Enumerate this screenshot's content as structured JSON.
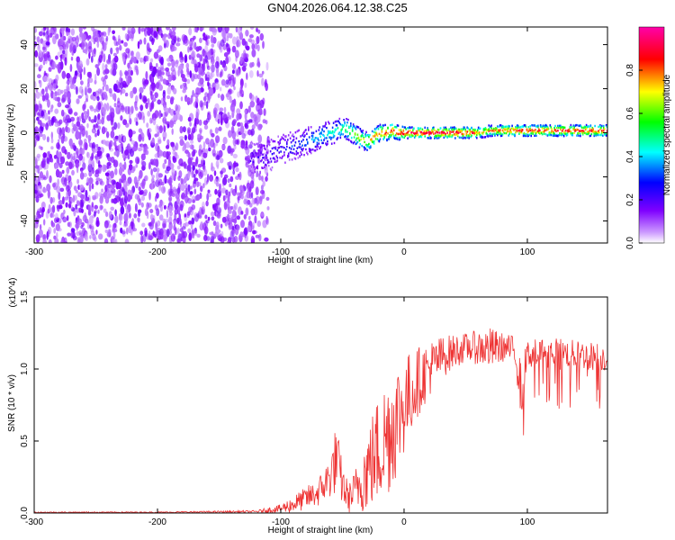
{
  "title": "GN04.2026.064.12.38.C25",
  "chart_data": [
    {
      "type": "heatmap",
      "xlabel": "Height of straight line (km)",
      "ylabel": "Frequency (Hz)",
      "xlim": [
        -300,
        165
      ],
      "ylim": [
        -50,
        48
      ],
      "xticks": [
        -300,
        -200,
        -100,
        0,
        100
      ],
      "yticks": [
        -40,
        -20,
        0,
        20,
        40
      ],
      "grid": false,
      "colorbar": {
        "label": "Normalized spectral amplitude",
        "range": [
          0,
          1
        ],
        "ticks": [
          "0.0",
          "0.2",
          "0.4",
          "0.6",
          "0.8"
        ],
        "colors": [
          "#ffffff",
          "#cc99ff",
          "#7f00ff",
          "#0000ff",
          "#00ffff",
          "#00ff00",
          "#ffff00",
          "#ff0000",
          "#ff00aa"
        ]
      },
      "ridge": {
        "x": [
          -120,
          -110,
          -100,
          -90,
          -80,
          -70,
          -60,
          -55,
          -50,
          -45,
          -40,
          -35,
          -30,
          -25,
          -20,
          -15,
          -10,
          -5,
          0,
          10,
          20,
          40,
          55,
          60,
          70,
          80,
          100,
          120,
          140,
          165
        ],
        "y": [
          -12,
          -10,
          -8,
          -6,
          -4,
          -2,
          0,
          1,
          2,
          1,
          -1,
          -3,
          -4,
          -2,
          0,
          0,
          1,
          0,
          0,
          0,
          0,
          0,
          0,
          0,
          1,
          1,
          1,
          1,
          1,
          1
        ],
        "amp": [
          0.2,
          0.22,
          0.25,
          0.3,
          0.35,
          0.4,
          0.45,
          0.5,
          0.55,
          0.6,
          0.65,
          0.7,
          0.75,
          0.8,
          0.85,
          0.88,
          0.9,
          0.92,
          0.95,
          0.95,
          0.95,
          0.95,
          0.9,
          0.75,
          0.8,
          0.85,
          0.9,
          0.9,
          0.9,
          0.9
        ]
      }
    },
    {
      "type": "line",
      "xlabel": "Height of straight line (km)",
      "ylabel": "SNR (10 * v/v)",
      "yscale_label": "(x10^4)",
      "xlim": [
        -300,
        165
      ],
      "ylim": [
        0,
        1.5
      ],
      "xticks": [
        -300,
        -200,
        -100,
        0,
        100
      ],
      "yticks": [
        0.0,
        0.5,
        1.0,
        1.5
      ],
      "yticklabels": [
        "0.0",
        "0.5",
        "1.0",
        "1.5"
      ],
      "color": "#ee3333",
      "grid": false,
      "envelope": {
        "x": [
          -300,
          -200,
          -120,
          -100,
          -90,
          -80,
          -70,
          -60,
          -55,
          -50,
          -45,
          -40,
          -30,
          -20,
          -10,
          0,
          10,
          20,
          30,
          40,
          50,
          60,
          70,
          80,
          90,
          95,
          100,
          110,
          120,
          140,
          165
        ],
        "y": [
          0.005,
          0.005,
          0.01,
          0.03,
          0.06,
          0.1,
          0.14,
          0.25,
          0.38,
          0.2,
          0.1,
          0.15,
          0.3,
          0.45,
          0.6,
          0.75,
          0.9,
          1.0,
          1.08,
          1.12,
          1.15,
          1.15,
          1.14,
          1.15,
          1.13,
          0.85,
          1.1,
          1.12,
          1.12,
          1.1,
          1.08
        ],
        "spread": [
          0.004,
          0.004,
          0.008,
          0.03,
          0.06,
          0.08,
          0.1,
          0.15,
          0.25,
          0.15,
          0.1,
          0.15,
          0.3,
          0.4,
          0.45,
          0.35,
          0.25,
          0.2,
          0.15,
          0.12,
          0.1,
          0.12,
          0.15,
          0.1,
          0.1,
          0.2,
          0.1,
          0.1,
          0.1,
          0.1,
          0.1
        ]
      }
    }
  ]
}
